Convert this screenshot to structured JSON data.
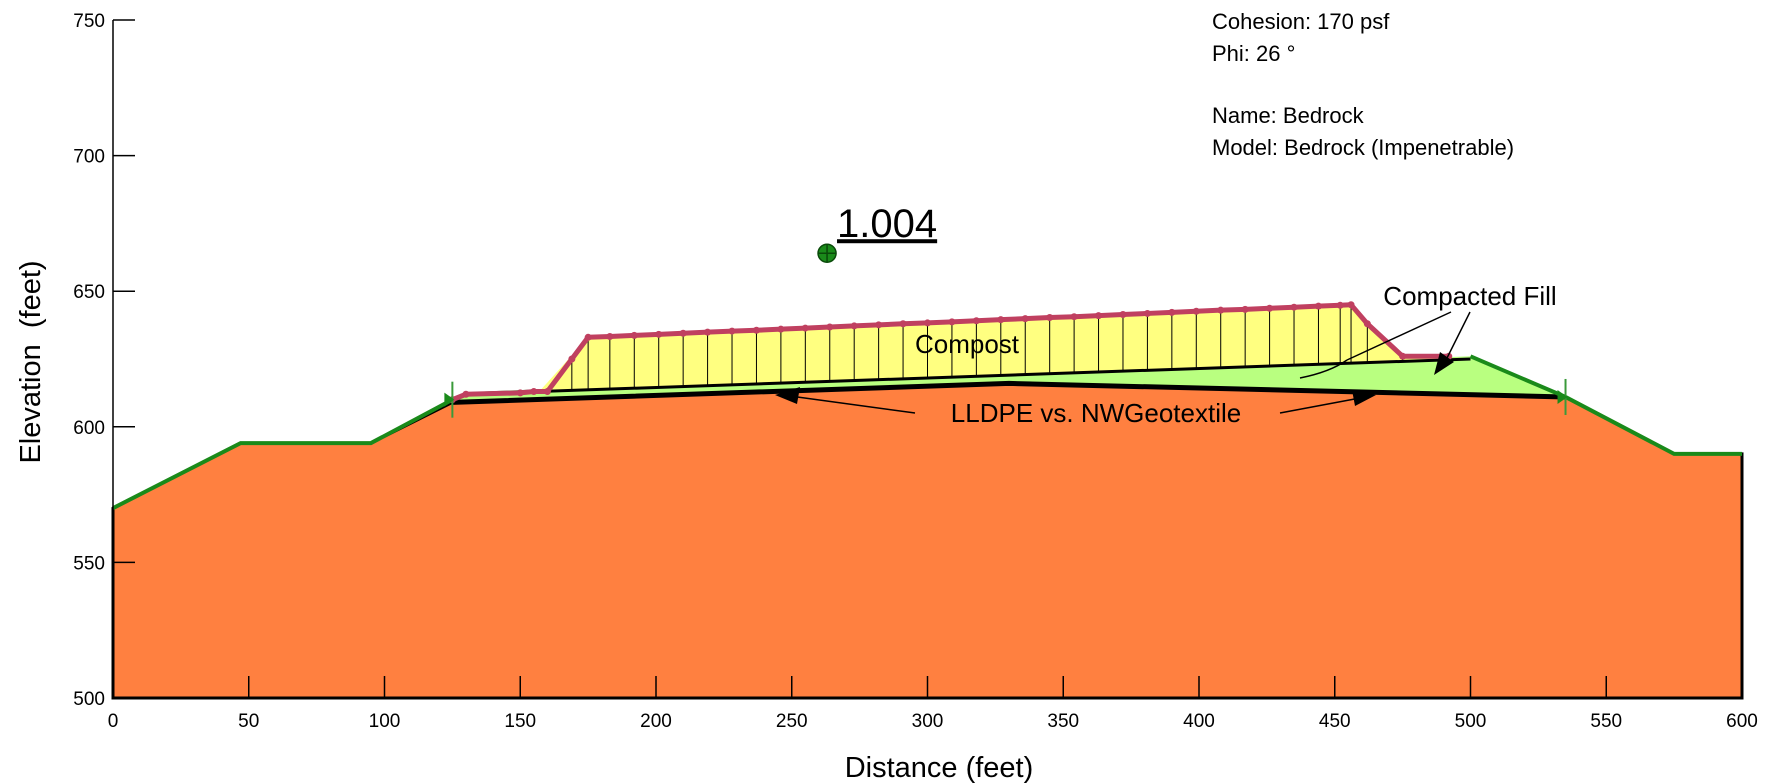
{
  "chart_data": {
    "type": "cross-section",
    "x_label": "Distance (feet)",
    "y_label": "Elevation  (feet)",
    "xlim": [
      0,
      600
    ],
    "ylim": [
      500,
      750
    ],
    "xticks": [
      0,
      50,
      100,
      150,
      200,
      250,
      300,
      350,
      400,
      450,
      500,
      550,
      600
    ],
    "yticks": [
      500,
      550,
      600,
      650,
      700,
      750
    ],
    "regions": [
      {
        "name": "Bedrock",
        "color": "#ff8040",
        "x": [
          0,
          47,
          95,
          125,
          330,
          535,
          575,
          600,
          600,
          0
        ],
        "y": [
          570,
          594,
          594,
          609,
          616,
          611,
          590,
          590,
          500,
          500
        ]
      },
      {
        "name": "Compacted Fill",
        "color": "#b9ff80",
        "x": [
          125,
          130,
          155,
          500,
          535,
          330
        ],
        "y": [
          609,
          612,
          613,
          626,
          611,
          616
        ]
      },
      {
        "name": "Compost",
        "color": "#ffff80",
        "x": [
          157,
          175,
          456,
          475,
          500
        ],
        "y": [
          613,
          633,
          645,
          626,
          625
        ]
      }
    ],
    "ground_surface": {
      "color": "#1a8a1a",
      "x": [
        0,
        47,
        95,
        125,
        130,
        155
      ],
      "y": [
        570,
        594,
        594,
        610,
        612,
        613
      ],
      "x_right": [
        500,
        535,
        575,
        600
      ],
      "y_right": [
        626,
        611,
        590,
        590
      ]
    },
    "liner": {
      "x": [
        125,
        330,
        535
      ],
      "y": [
        609,
        616,
        611
      ]
    },
    "slice_base": {
      "x": [
        157,
        500
      ],
      "y": [
        613,
        625
      ]
    },
    "slip_surface": {
      "color": "#c04060",
      "x": [
        125,
        130,
        150,
        155,
        160,
        169,
        175,
        183,
        192,
        201,
        210,
        219,
        228,
        237,
        246,
        255,
        264,
        273,
        282,
        291,
        300,
        309,
        318,
        327,
        336,
        345,
        354,
        363,
        372,
        381,
        390,
        399,
        408,
        417,
        426,
        435,
        444,
        452,
        456,
        462,
        475,
        492
      ],
      "y": [
        610,
        612,
        612.5,
        613,
        613,
        625,
        633,
        633.3,
        633.7,
        634.1,
        634.5,
        634.9,
        635.3,
        635.6,
        636,
        636.4,
        636.8,
        637.2,
        637.6,
        638,
        638.3,
        638.7,
        639.1,
        639.5,
        639.9,
        640.3,
        640.6,
        641,
        641.4,
        641.8,
        642.2,
        642.6,
        643,
        643.3,
        643.7,
        644.1,
        644.5,
        644.8,
        645,
        638,
        626,
        626
      ]
    },
    "slip_center": {
      "x": 263,
      "y": 664,
      "label": "1.004"
    },
    "annotations": [
      "Compost",
      "Compacted Fill",
      "LLDPE vs. NWGeotextile"
    ],
    "material_info": [
      "Cohesion: 170 psf",
      "Phi: 26 °",
      "Name: Bedrock",
      "Model: Bedrock (Impenetrable)"
    ]
  }
}
